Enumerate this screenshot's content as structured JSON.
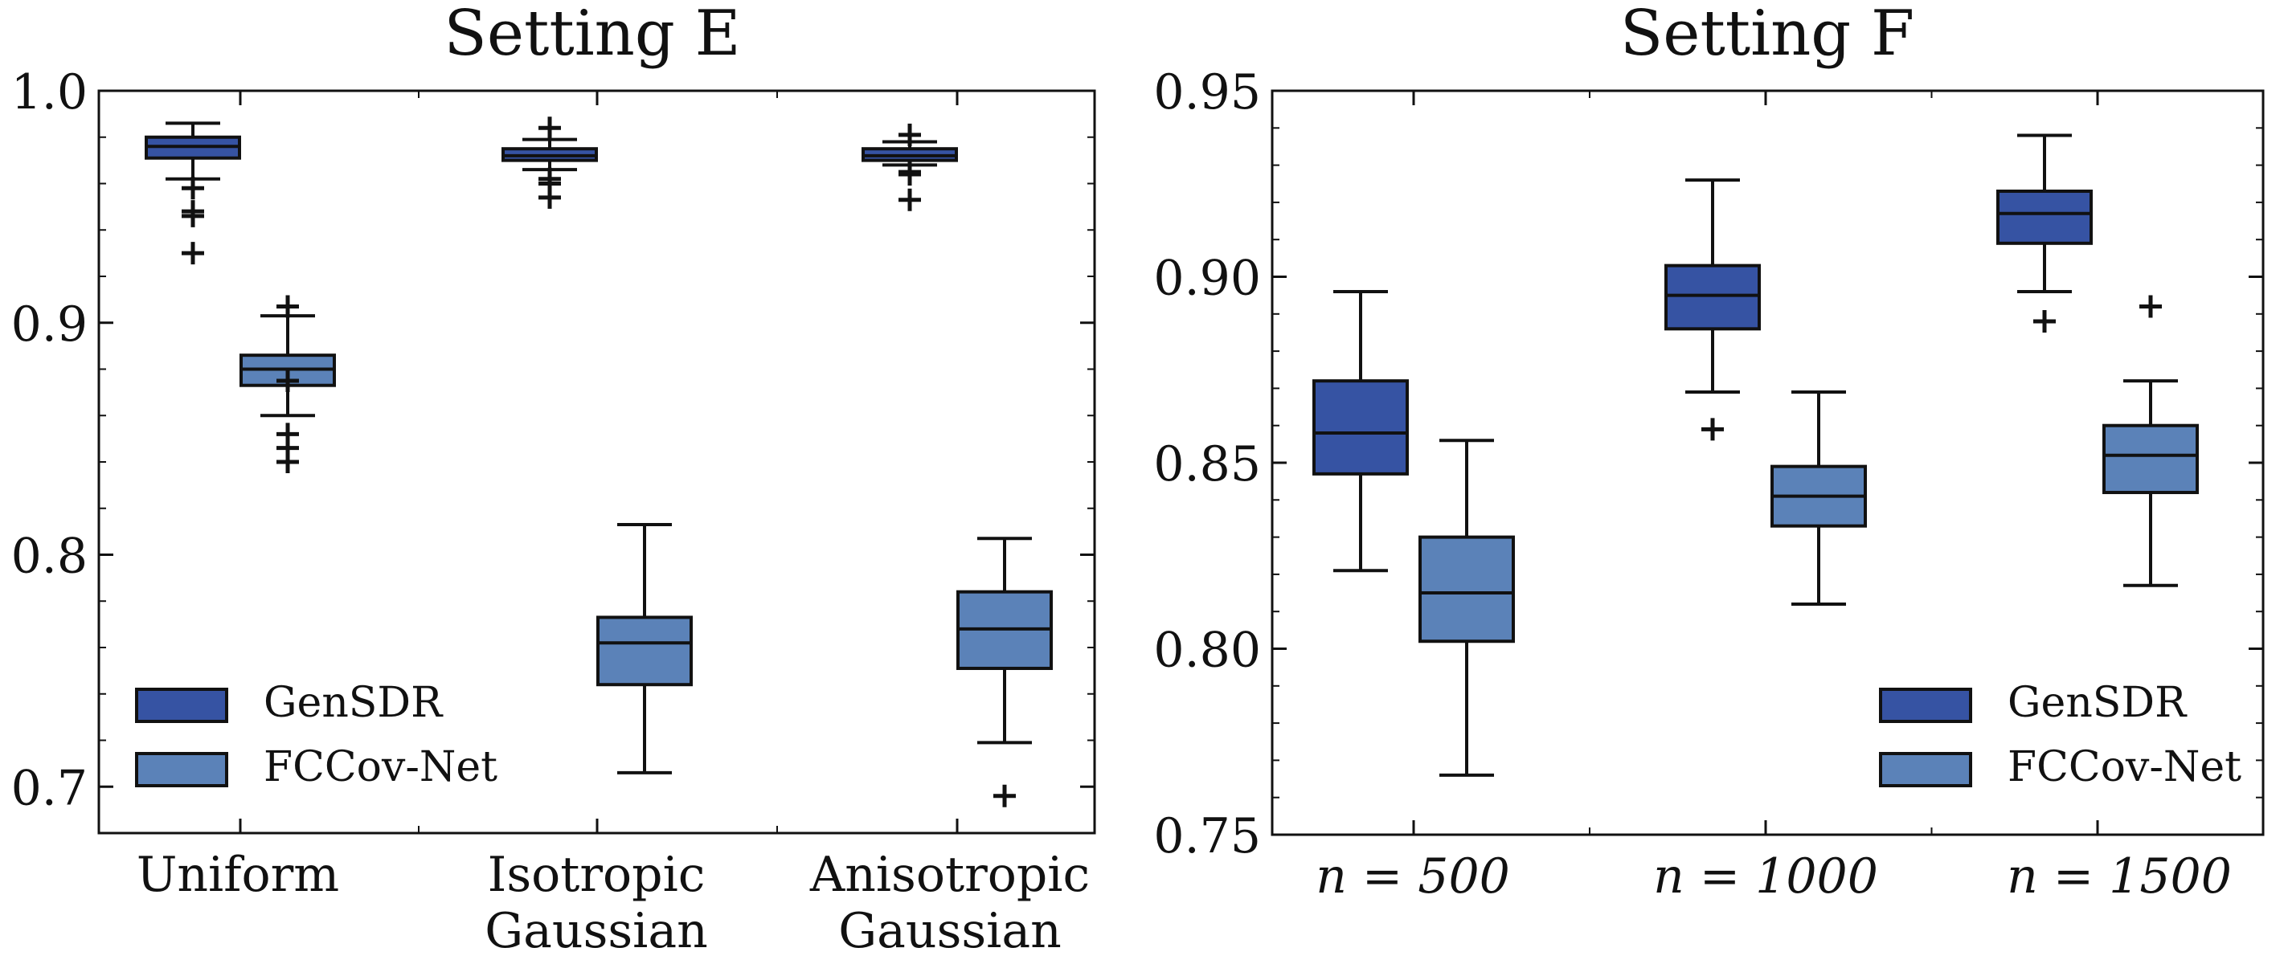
{
  "colors": {
    "gensdr": "#3653a3",
    "fccovnet": "#5b82b8",
    "stroke": "#111111"
  },
  "chart_data": [
    {
      "type": "box",
      "title": "Setting E",
      "xlabel": "",
      "ylabel": "",
      "ylim": [
        0.68,
        1.0
      ],
      "yticks": [
        0.7,
        0.8,
        0.9,
        1.0
      ],
      "ytick_labels": [
        "0.7",
        "0.8",
        "0.9",
        "1.0"
      ],
      "categories": [
        [
          "Uniform"
        ],
        [
          "Isotropic",
          "Gaussian"
        ],
        [
          "Anisotropic",
          "Gaussian"
        ]
      ],
      "legend": {
        "position": "bottom-left",
        "entries": [
          "GenSDR",
          "FCCov-Net"
        ]
      },
      "series": [
        {
          "name": "GenSDR",
          "boxes": [
            {
              "whislo": 0.962,
              "q1": 0.971,
              "med": 0.976,
              "q3": 0.98,
              "whishi": 0.986,
              "fliers": [
                0.958,
                0.948,
                0.946,
                0.93
              ]
            },
            {
              "whislo": 0.966,
              "q1": 0.97,
              "med": 0.972,
              "q3": 0.975,
              "whishi": 0.979,
              "fliers": [
                0.984,
                0.962,
                0.96,
                0.954
              ]
            },
            {
              "whislo": 0.968,
              "q1": 0.97,
              "med": 0.972,
              "q3": 0.975,
              "whishi": 0.978,
              "fliers": [
                0.981,
                0.965,
                0.964,
                0.953
              ]
            }
          ]
        },
        {
          "name": "FCCov-Net",
          "boxes": [
            {
              "whislo": 0.86,
              "q1": 0.873,
              "med": 0.88,
              "q3": 0.886,
              "whishi": 0.903,
              "fliers": [
                0.907,
                0.875,
                0.852,
                0.846,
                0.84
              ]
            },
            {
              "whislo": 0.706,
              "q1": 0.744,
              "med": 0.762,
              "q3": 0.773,
              "whishi": 0.813,
              "fliers": []
            },
            {
              "whislo": 0.719,
              "q1": 0.751,
              "med": 0.768,
              "q3": 0.784,
              "whishi": 0.807,
              "fliers": [
                0.696
              ]
            }
          ]
        }
      ]
    },
    {
      "type": "box",
      "title": "Setting F",
      "xlabel": "",
      "ylabel": "",
      "ylim": [
        0.75,
        0.95
      ],
      "yticks": [
        0.75,
        0.8,
        0.85,
        0.9,
        0.95
      ],
      "ytick_labels": [
        "0.75",
        "0.80",
        "0.85",
        "0.90",
        "0.95"
      ],
      "categories": [
        [
          "n = 500"
        ],
        [
          "n = 1000"
        ],
        [
          "n = 1500"
        ]
      ],
      "legend": {
        "position": "bottom-right",
        "entries": [
          "GenSDR",
          "FCCov-Net"
        ]
      },
      "series": [
        {
          "name": "GenSDR",
          "boxes": [
            {
              "whislo": 0.821,
              "q1": 0.847,
              "med": 0.858,
              "q3": 0.872,
              "whishi": 0.896,
              "fliers": []
            },
            {
              "whislo": 0.869,
              "q1": 0.886,
              "med": 0.895,
              "q3": 0.903,
              "whishi": 0.926,
              "fliers": [
                0.859
              ]
            },
            {
              "whislo": 0.896,
              "q1": 0.909,
              "med": 0.917,
              "q3": 0.923,
              "whishi": 0.938,
              "fliers": [
                0.888
              ]
            }
          ]
        },
        {
          "name": "FCCov-Net",
          "boxes": [
            {
              "whislo": 0.766,
              "q1": 0.802,
              "med": 0.815,
              "q3": 0.83,
              "whishi": 0.856,
              "fliers": []
            },
            {
              "whislo": 0.812,
              "q1": 0.833,
              "med": 0.841,
              "q3": 0.849,
              "whishi": 0.869,
              "fliers": []
            },
            {
              "whislo": 0.817,
              "q1": 0.842,
              "med": 0.852,
              "q3": 0.86,
              "whishi": 0.872,
              "fliers": [
                0.892
              ]
            }
          ]
        }
      ]
    }
  ]
}
